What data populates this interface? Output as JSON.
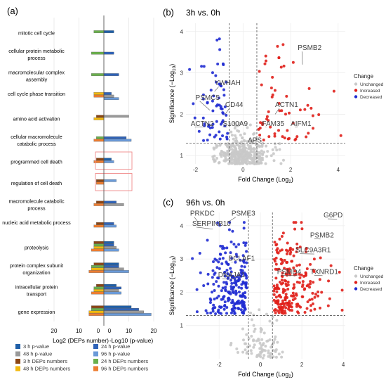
{
  "panel_labels": {
    "a": "(a)",
    "b": "(b)",
    "c": "(c)"
  },
  "chart_data": [
    {
      "type": "bar",
      "orientation": "horizontal-diverging",
      "categories": [
        "mitotic cell cycle",
        "cellular protein metabolic process",
        "macromolecular complex assembly",
        "cell cycle phase transition",
        "amino acid activation",
        "cellular macromolecule catabolic process",
        "programmed cell death",
        "regulation of cell death",
        "macromolecule catabolic process",
        "nucleic acid metabolic process",
        "proteolysis",
        "protein complex subunit organization",
        "intracellular protein transport",
        "gene expression"
      ],
      "highlighted_categories": [
        "programmed cell death",
        "regulation of cell death"
      ],
      "left_xlabel": "Log2 (DEPs number)",
      "right_xlabel": "-Log10  (p-value)",
      "left_ticks": [
        20,
        10,
        0
      ],
      "right_ticks": [
        0,
        10,
        20
      ],
      "left_xlim": [
        20,
        0
      ],
      "right_xlim": [
        0,
        20
      ],
      "series_side": {
        "dep": "left",
        "pval": "right"
      },
      "series": [
        {
          "name": "3 h p-value",
          "side": "right",
          "color": "#1f5fa8",
          "values": [
            4,
            0,
            0,
            0,
            0,
            0,
            3,
            0,
            0,
            0,
            4,
            6,
            5,
            11
          ]
        },
        {
          "name": "24 h p-value",
          "side": "right",
          "color": "#2f63b8",
          "values": [
            0,
            4,
            6,
            3,
            0,
            9,
            0,
            0,
            5,
            4,
            4,
            6,
            7,
            14
          ]
        },
        {
          "name": "48 h p-value",
          "side": "right",
          "color": "#9a9a9a",
          "values": [
            0,
            0,
            0,
            4,
            10,
            0,
            0,
            0,
            8,
            0,
            5,
            8,
            6,
            16
          ]
        },
        {
          "name": "96 h p-value",
          "side": "right",
          "color": "#6a9ad8",
          "values": [
            0,
            0,
            0,
            6,
            0,
            11,
            4,
            5,
            0,
            5,
            6,
            10,
            7,
            19
          ]
        },
        {
          "name": "3 h DEPs numbers",
          "side": "left",
          "color": "#8b4513",
          "values": [
            0,
            0,
            0,
            0,
            3,
            0,
            3,
            3,
            3,
            3,
            4,
            4,
            3,
            5
          ]
        },
        {
          "name": "24 h DEPs numbers",
          "side": "left",
          "color": "#6ab04c",
          "values": [
            4,
            5,
            5,
            0,
            0,
            3,
            0,
            0,
            0,
            0,
            4,
            5,
            4,
            5
          ]
        },
        {
          "name": "48 h DEPs numbers",
          "side": "left",
          "color": "#f2b90f",
          "values": [
            0,
            0,
            0,
            4,
            4,
            0,
            0,
            0,
            0,
            0,
            4,
            5,
            4,
            6
          ]
        },
        {
          "name": "96 h DEPs numbers",
          "side": "left",
          "color": "#ed7d31",
          "values": [
            0,
            0,
            0,
            4,
            0,
            4,
            4,
            3,
            4,
            4,
            5,
            6,
            5,
            6
          ]
        }
      ]
    },
    {
      "type": "scatter",
      "title": "3h vs. 0h",
      "xlabel": "Fold Change (Log",
      "xlabel_sub": "2",
      "xlabel_end": ")",
      "ylabel": "Significance (−Log",
      "ylabel_sub": "10",
      "ylabel_end": ")",
      "xlim": [
        -2.4,
        4.3
      ],
      "ylim": [
        0.8,
        4.2
      ],
      "xticks": [
        -2,
        0,
        2,
        4
      ],
      "yticks": [
        1,
        2,
        3,
        4
      ],
      "vlines": [
        -0.58,
        0.58
      ],
      "hline": 1.3,
      "legend_title": "Change",
      "legend_entries": [
        "Unchanged",
        "Increased",
        "Decreased"
      ],
      "legend_colors": [
        "#c9c9c9",
        "#e0201b",
        "#1f2bd1"
      ],
      "seed": 11,
      "point_counts": {
        "unchanged": 360,
        "increased": 60,
        "decreased": 65
      },
      "labels": [
        {
          "text": "PSMB2",
          "x": 2.5,
          "y": 3.2,
          "tx": 2.3,
          "ty": 3.55
        },
        {
          "text": "YWHAH",
          "x": -1.2,
          "y": 2.55,
          "tx": -1.2,
          "ty": 2.7
        },
        {
          "text": "PSMC5",
          "x": -1.4,
          "y": 2.1,
          "tx": -2.0,
          "ty": 2.35
        },
        {
          "text": "CD44",
          "x": -0.75,
          "y": 2.0,
          "tx": -0.75,
          "ty": 2.18
        },
        {
          "text": "ACTN1",
          "x": 1.35,
          "y": 2.0,
          "tx": 1.35,
          "ty": 2.18
        },
        {
          "text": "ACTN2",
          "x": -1.6,
          "y": 1.7,
          "tx": -2.2,
          "ty": 1.72
        },
        {
          "text": "S100A9",
          "x": -0.85,
          "y": 1.7,
          "tx": -0.85,
          "ty": 1.72
        },
        {
          "text": "FAM35",
          "x": 0.95,
          "y": 1.7,
          "tx": 0.8,
          "ty": 1.72
        },
        {
          "text": "AIFM1",
          "x": 2.3,
          "y": 1.7,
          "tx": 2.0,
          "ty": 1.72
        },
        {
          "text": "APS",
          "x": 0.6,
          "y": 1.3,
          "tx": 0.2,
          "ty": 1.32
        }
      ]
    },
    {
      "type": "scatter",
      "title": "96h vs. 0h",
      "xlabel": "Fold Change (Log",
      "xlabel_sub": "2",
      "xlabel_end": ")",
      "ylabel": "Significance (−Log",
      "ylabel_sub": "10",
      "ylabel_end": ")",
      "xlim": [
        -3.6,
        4.1
      ],
      "ylim": [
        0.0,
        4.4
      ],
      "xticks": [
        -2,
        0,
        2,
        4
      ],
      "yticks": [
        1,
        2,
        3,
        4
      ],
      "vlines": [
        -0.58,
        0.58
      ],
      "hline": 1.3,
      "legend_title": "Change",
      "legend_entries": [
        "Unchanged",
        "Increased",
        "Decreased"
      ],
      "legend_colors": [
        "#c9c9c9",
        "#e0201b",
        "#1f2bd1"
      ],
      "seed": 29,
      "point_counts": {
        "unchanged": 90,
        "increased": 230,
        "decreased": 230
      },
      "labels": [
        {
          "text": "PRKDC",
          "x": -3.0,
          "y": 4.1,
          "tx": -3.4,
          "ty": 4.3
        },
        {
          "text": "SERPINB10",
          "x": -2.3,
          "y": 3.9,
          "tx": -3.3,
          "ty": 4.0
        },
        {
          "text": "PSME3",
          "x": -1.6,
          "y": 4.1,
          "tx": -1.4,
          "ty": 4.3
        },
        {
          "text": "G6PD",
          "x": 3.7,
          "y": 4.2,
          "tx": 3.05,
          "ty": 4.25
        },
        {
          "text": "PSMB2",
          "x": 2.9,
          "y": 3.6,
          "tx": 2.4,
          "ty": 3.65
        },
        {
          "text": "SLC9A3R1",
          "x": 2.6,
          "y": 3.15,
          "tx": 1.7,
          "ty": 3.2
        },
        {
          "text": "BCLAF1",
          "x": -1.4,
          "y": 2.9,
          "tx": -1.55,
          "ty": 2.95
        },
        {
          "text": "PSMD4",
          "x": 1.8,
          "y": 2.5,
          "tx": 0.8,
          "ty": 2.55
        },
        {
          "text": "TXNRD1",
          "x": 3.0,
          "y": 2.5,
          "tx": 2.4,
          "ty": 2.55
        },
        {
          "text": "DNAJA1",
          "x": -1.2,
          "y": 2.4,
          "tx": -2.05,
          "ty": 2.45
        }
      ]
    }
  ]
}
